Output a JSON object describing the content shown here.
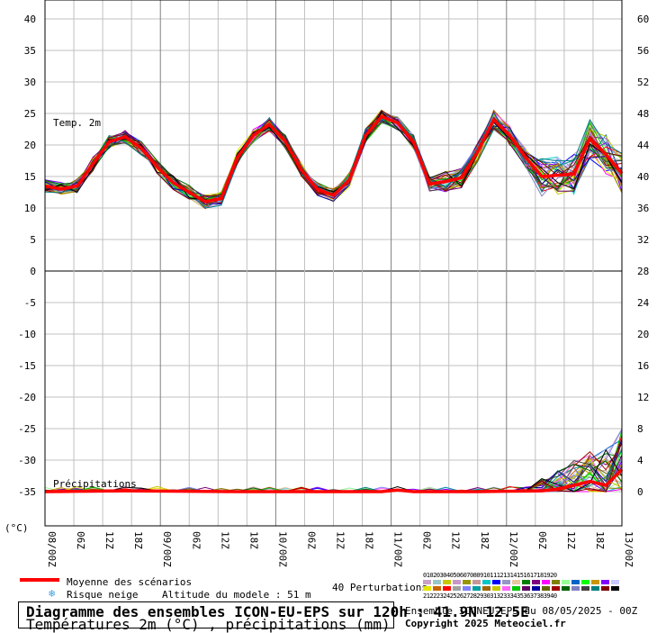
{
  "chart_data": {
    "type": "line",
    "left_axis": {
      "unit": "(°C)",
      "ticks": [
        40,
        35,
        30,
        25,
        20,
        15,
        10,
        5,
        0,
        -5,
        -10,
        -15,
        -20,
        -25,
        -30,
        -35
      ]
    },
    "right_axis": {
      "ticks": [
        60,
        56,
        52,
        48,
        44,
        40,
        36,
        32,
        28,
        24,
        20,
        16,
        12,
        8,
        4,
        0
      ]
    },
    "x_labels": [
      "08/00Z",
      "06Z",
      "12Z",
      "18Z",
      "09/00Z",
      "06Z",
      "12Z",
      "18Z",
      "10/00Z",
      "06Z",
      "12Z",
      "18Z",
      "11/00Z",
      "06Z",
      "12Z",
      "18Z",
      "12/00Z",
      "06Z",
      "12Z",
      "18Z",
      "13/00Z"
    ],
    "temp_label": "Temp. 2m",
    "precip_label": "Précipitations",
    "temp_mean": [
      [
        0,
        13.5
      ],
      [
        1,
        13.0
      ],
      [
        2,
        13.5
      ],
      [
        3,
        17
      ],
      [
        4,
        20.5
      ],
      [
        5,
        21.3
      ],
      [
        6,
        19.5
      ],
      [
        7,
        16.5
      ],
      [
        8,
        14
      ],
      [
        9,
        12.5
      ],
      [
        10,
        11
      ],
      [
        11,
        11.5
      ],
      [
        12,
        18
      ],
      [
        13,
        21.5
      ],
      [
        14,
        23.3
      ],
      [
        15,
        20.5
      ],
      [
        16,
        16
      ],
      [
        17,
        13
      ],
      [
        18,
        12
      ],
      [
        19,
        14.5
      ],
      [
        20,
        21.5
      ],
      [
        21,
        24.5
      ],
      [
        22,
        23.5
      ],
      [
        23,
        20.5
      ],
      [
        24,
        13.8
      ],
      [
        25,
        14.2
      ],
      [
        26,
        14.8
      ],
      [
        27,
        19
      ],
      [
        28,
        24
      ],
      [
        29,
        21.5
      ],
      [
        30,
        18
      ],
      [
        31,
        15
      ],
      [
        32,
        15.2
      ],
      [
        33,
        15.4
      ],
      [
        34,
        21
      ],
      [
        35,
        18.5
      ],
      [
        36,
        15.5
      ]
    ],
    "precip_mean_mm": [
      [
        0,
        0
      ],
      [
        5,
        0.1
      ],
      [
        12,
        0
      ],
      [
        19,
        0
      ],
      [
        21,
        0
      ],
      [
        22,
        0.2
      ],
      [
        23,
        0
      ],
      [
        27,
        0
      ],
      [
        31,
        0.1
      ],
      [
        32,
        0.3
      ],
      [
        34,
        1.3
      ],
      [
        35,
        0.8
      ],
      [
        36,
        2.8
      ]
    ],
    "members_count": 40,
    "palette": [
      "#c8a0c8",
      "#96c8c8",
      "#c8c800",
      "#c896c8",
      "#969600",
      "#c89696",
      "#00c8c8",
      "#0000ff",
      "#9696c8",
      "#e6c8a0",
      "#008000",
      "#800080",
      "#ff00ff",
      "#808000",
      "#96ff96",
      "#0064c8",
      "#00ff00",
      "#c89600",
      "#8000ff",
      "#c8c8ff",
      "#e6e600",
      "#c86400",
      "#ff0000",
      "#a0a0a0",
      "#8080ff",
      "#00a0a0",
      "#a06400",
      "#c8c800",
      "#ff64ff",
      "#00c800",
      "#600060",
      "#0000a0",
      "#646400",
      "#a00000",
      "#006400",
      "#8080c0",
      "#404040",
      "#008080",
      "#800000",
      "#000000"
    ]
  },
  "legend": {
    "mean_label": "Moyenne des scénarios",
    "snow_label": "Risque neige",
    "altitude": "Altitude du modele : 51 m",
    "perturbations": "40 Perturbations",
    "numbers_top": "0102030405060708091011121314151617181920",
    "numbers_bottom": "2122232425262728293031323334353637383940"
  },
  "footer": {
    "title": "Diagramme des ensembles ICON-EU-EPS sur 120h : 41.9N 12.5E",
    "subtitle": "Températures 2m (°C) , précipitations (mm)",
    "run": "Ensemble ICONEU-EPS du 08/05/2025 - 00Z",
    "copyright": "Copyright 2025 Meteociel.fr"
  },
  "colors": {
    "mean": "#ff0000",
    "grid": "#c0c0c0",
    "major_grid": "#808080"
  }
}
